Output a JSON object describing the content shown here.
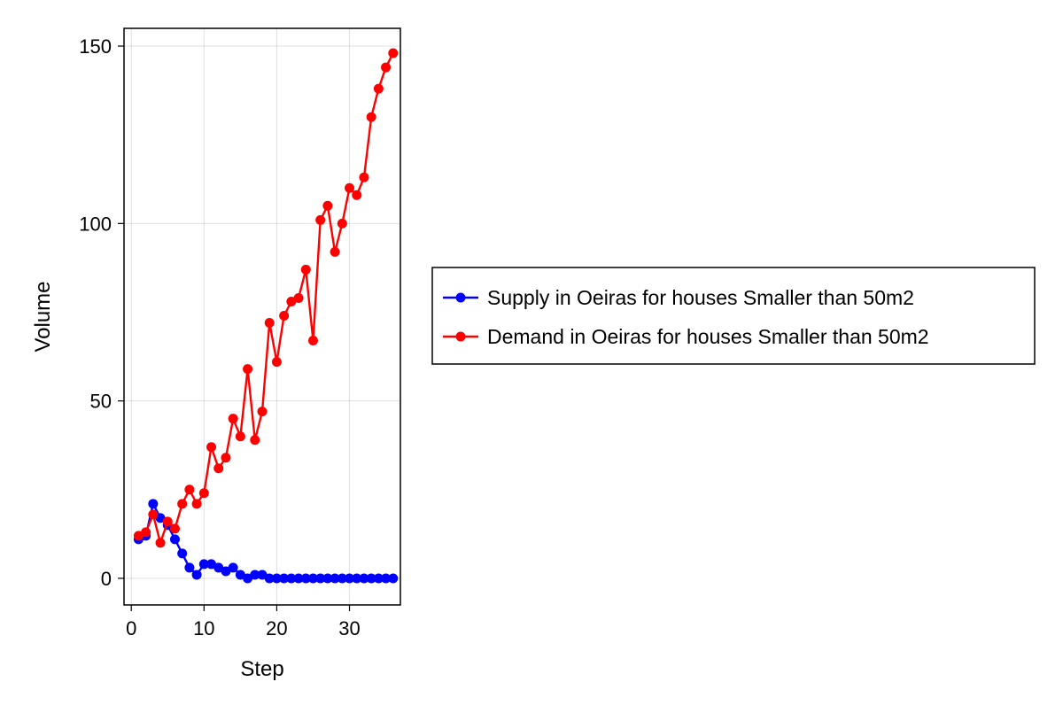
{
  "chart_data": {
    "type": "line",
    "title": "",
    "xlabel": "Step",
    "ylabel": "Volume",
    "xlim": [
      -1,
      37
    ],
    "ylim": [
      -7.5,
      155
    ],
    "xticks": [
      0,
      10,
      20,
      30
    ],
    "yticks": [
      0,
      50,
      100,
      150
    ],
    "grid": true,
    "legend_position": "right",
    "series": [
      {
        "name": "Supply in Oeiras for houses Smaller than 50m2",
        "color": "#0000ff",
        "x": [
          1,
          2,
          3,
          4,
          5,
          6,
          7,
          8,
          9,
          10,
          11,
          12,
          13,
          14,
          15,
          16,
          17,
          18,
          19,
          20,
          21,
          22,
          23,
          24,
          25,
          26,
          27,
          28,
          29,
          30,
          31,
          32,
          33,
          34,
          35,
          36
        ],
        "y": [
          11,
          12,
          21,
          17,
          15,
          11,
          7,
          3,
          1,
          4,
          4,
          3,
          2,
          3,
          1,
          0,
          1,
          1,
          0,
          0,
          0,
          0,
          0,
          0,
          0,
          0,
          0,
          0,
          0,
          0,
          0,
          0,
          0,
          0,
          0,
          0
        ]
      },
      {
        "name": "Demand in Oeiras for houses Smaller than 50m2",
        "color": "#ff0000",
        "x": [
          1,
          2,
          3,
          4,
          5,
          6,
          7,
          8,
          9,
          10,
          11,
          12,
          13,
          14,
          15,
          16,
          17,
          18,
          19,
          20,
          21,
          22,
          23,
          24,
          25,
          26,
          27,
          28,
          29,
          30,
          31,
          32,
          33,
          34,
          35,
          36
        ],
        "y": [
          12,
          13,
          18,
          10,
          16,
          14,
          21,
          25,
          21,
          24,
          37,
          31,
          34,
          45,
          40,
          59,
          39,
          47,
          72,
          61,
          74,
          78,
          79,
          87,
          67,
          101,
          105,
          92,
          100,
          110,
          108,
          113,
          130,
          138,
          144,
          148
        ]
      }
    ]
  }
}
